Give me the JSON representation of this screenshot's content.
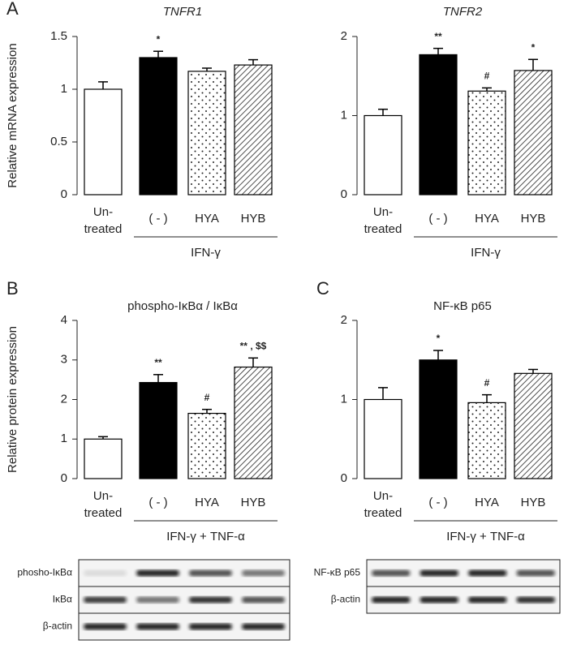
{
  "chart_data": [
    {
      "type": "bar",
      "panel_label": "A",
      "title": "TNFR1",
      "title_italic": true,
      "y_label": "Relative mRNA expression",
      "categories": [
        [
          "Un-",
          "treated"
        ],
        "( - )",
        "HYA",
        "HYB"
      ],
      "group_label": "IFN-γ",
      "values": [
        1.0,
        1.3,
        1.17,
        1.23
      ],
      "errors": [
        0.07,
        0.06,
        0.03,
        0.05
      ],
      "annotations": [
        null,
        "*",
        null,
        null
      ],
      "fills": [
        "white",
        "black",
        "dots",
        "hatch"
      ],
      "ylim": [
        0,
        1.5
      ],
      "yticks": [
        0,
        0.5,
        1,
        1.5
      ]
    },
    {
      "type": "bar",
      "title": "TNFR2",
      "title_italic": true,
      "categories": [
        [
          "Un-",
          "treated"
        ],
        "( - )",
        "HYA",
        "HYB"
      ],
      "group_label": "IFN-γ",
      "values": [
        1.0,
        1.77,
        1.31,
        1.57
      ],
      "errors": [
        0.08,
        0.08,
        0.04,
        0.14
      ],
      "annotations": [
        null,
        "**",
        "#",
        "*"
      ],
      "fills": [
        "white",
        "black",
        "dots",
        "hatch"
      ],
      "ylim": [
        0,
        2
      ],
      "yticks": [
        0,
        1,
        2
      ]
    },
    {
      "type": "bar",
      "panel_label": "B",
      "title": "phospho-IκBα / IκBα",
      "title_italic": false,
      "y_label": "Relative protein expression",
      "categories": [
        [
          "Un-",
          "treated"
        ],
        "( - )",
        "HYA",
        "HYB"
      ],
      "group_label": "IFN-γ + TNF-α",
      "values": [
        1.0,
        2.43,
        1.65,
        2.82
      ],
      "errors": [
        0.06,
        0.2,
        0.1,
        0.23
      ],
      "annotations": [
        null,
        "**",
        "#",
        "** , $$"
      ],
      "fills": [
        "white",
        "black",
        "dots",
        "hatch"
      ],
      "ylim": [
        0,
        4
      ],
      "yticks": [
        0,
        1,
        2,
        3,
        4
      ]
    },
    {
      "type": "bar",
      "panel_label": "C",
      "title": "NF-κB p65",
      "title_italic": false,
      "categories": [
        [
          "Un-",
          "treated"
        ],
        "( - )",
        "HYA",
        "HYB"
      ],
      "group_label": "IFN-γ + TNF-α",
      "values": [
        1.0,
        1.5,
        0.96,
        1.33
      ],
      "errors": [
        0.15,
        0.12,
        0.1,
        0.05
      ],
      "annotations": [
        null,
        "*",
        "#",
        null
      ],
      "fills": [
        "white",
        "black",
        "dots",
        "hatch"
      ],
      "ylim": [
        0,
        2
      ],
      "yticks": [
        0,
        1,
        2
      ]
    }
  ],
  "blots": [
    {
      "rows": [
        "phosho-IκBα",
        "IκBα",
        "β-actin"
      ]
    },
    {
      "rows": [
        "NF-κB p65",
        "β-actin"
      ]
    }
  ]
}
